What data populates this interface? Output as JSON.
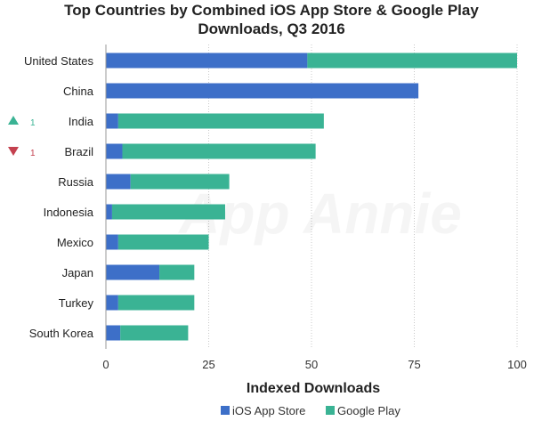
{
  "chart_data": {
    "type": "bar",
    "orientation": "horizontal",
    "stacked": true,
    "title_lines": [
      "Top Countries by Combined iOS App Store & Google Play",
      "Downloads, Q3 2016"
    ],
    "xlabel": "Indexed Downloads",
    "ylabel": "",
    "xlim": [
      0,
      100
    ],
    "xticks": [
      "0",
      "25",
      "50",
      "75",
      "100"
    ],
    "grid": "vertical dotted",
    "legend_position": "bottom",
    "watermark": "App Annie",
    "categories": [
      "United States",
      "China",
      "India",
      "Brazil",
      "Russia",
      "Indonesia",
      "Mexico",
      "Japan",
      "Turkey",
      "South Korea"
    ],
    "series": [
      {
        "name": "iOS App Store",
        "color": "#3d6fc8",
        "values": [
          49,
          76,
          3,
          4,
          6,
          1.5,
          3,
          13,
          3,
          3.5
        ]
      },
      {
        "name": "Google Play",
        "color": "#3ab394",
        "values": [
          51,
          0,
          50,
          47,
          24,
          27.5,
          22,
          8.5,
          18.5,
          16.5
        ]
      }
    ],
    "rank_changes": [
      {
        "category": "India",
        "direction": "up",
        "value": "1",
        "color": "#3ab394"
      },
      {
        "category": "Brazil",
        "direction": "down",
        "value": "1",
        "color": "#c4414f"
      }
    ]
  }
}
